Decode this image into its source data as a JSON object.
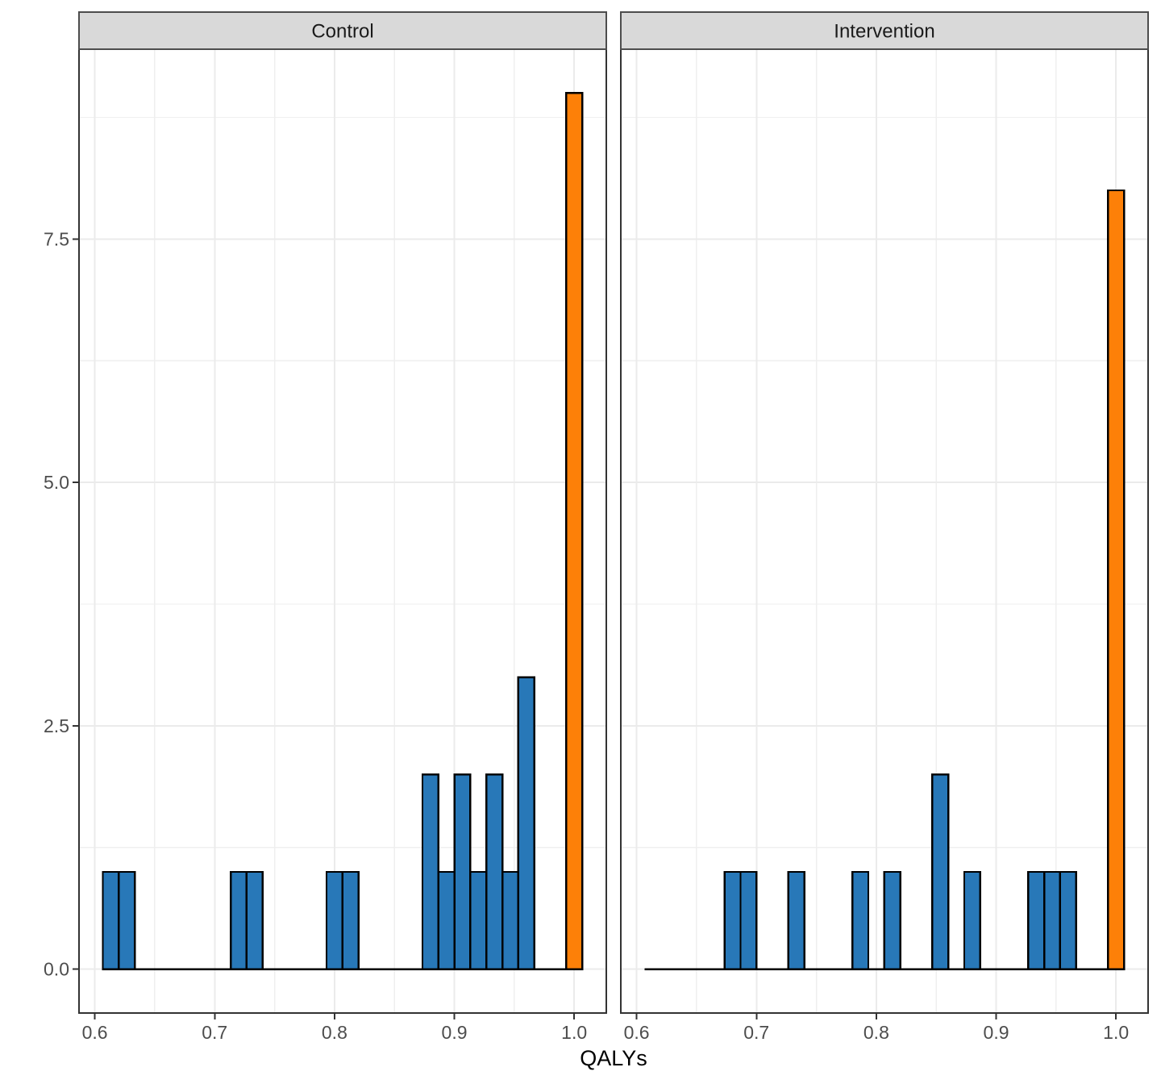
{
  "chart_data": {
    "type": "bar",
    "subtype": "faceted-histogram",
    "title": "",
    "xlabel": "QALYs",
    "ylabel": "",
    "grid": true,
    "legend": "none",
    "x_domain": [
      0.5868,
      1.0268
    ],
    "y_domain": [
      -0.45,
      9.45
    ],
    "bin_start": 0.60668,
    "binwidth": 0.013335,
    "n_bins_span": 30,
    "x_ticks": [
      {
        "value": 0.6,
        "label": "0.6"
      },
      {
        "value": 0.7,
        "label": "0.7"
      },
      {
        "value": 0.8,
        "label": "0.8"
      },
      {
        "value": 0.9,
        "label": "0.9"
      },
      {
        "value": 1.0,
        "label": "1.0"
      }
    ],
    "x_minor_ticks": [
      0.65,
      0.75,
      0.85,
      0.95
    ],
    "y_ticks": [
      {
        "value": 0.0,
        "label": "0.0"
      },
      {
        "value": 2.5,
        "label": "2.5"
      },
      {
        "value": 5.0,
        "label": "5.0"
      },
      {
        "value": 7.5,
        "label": "7.5"
      }
    ],
    "y_minor_ticks": [
      1.25,
      3.75,
      6.25,
      8.75
    ],
    "facets": [
      {
        "label": "Control",
        "bars": [
          {
            "bin": 0,
            "x0": 0.6067,
            "count": 1,
            "color": "blue"
          },
          {
            "bin": 1,
            "x0": 0.62,
            "count": 1,
            "color": "blue"
          },
          {
            "bin": 8,
            "x0": 0.7134,
            "count": 1,
            "color": "blue"
          },
          {
            "bin": 9,
            "x0": 0.7267,
            "count": 1,
            "color": "blue"
          },
          {
            "bin": 14,
            "x0": 0.7934,
            "count": 1,
            "color": "blue"
          },
          {
            "bin": 15,
            "x0": 0.8067,
            "count": 1,
            "color": "blue"
          },
          {
            "bin": 20,
            "x0": 0.8734,
            "count": 2,
            "color": "blue"
          },
          {
            "bin": 21,
            "x0": 0.8867,
            "count": 1,
            "color": "blue"
          },
          {
            "bin": 22,
            "x0": 0.9,
            "count": 2,
            "color": "blue"
          },
          {
            "bin": 23,
            "x0": 0.9134,
            "count": 1,
            "color": "blue"
          },
          {
            "bin": 24,
            "x0": 0.9267,
            "count": 2,
            "color": "blue"
          },
          {
            "bin": 25,
            "x0": 0.9401,
            "count": 1,
            "color": "blue"
          },
          {
            "bin": 26,
            "x0": 0.9534,
            "count": 3,
            "color": "blue"
          },
          {
            "bin": 29,
            "x0": 0.9934,
            "count": 9,
            "color": "orange"
          }
        ]
      },
      {
        "label": "Intervention",
        "bars": [
          {
            "bin": 5,
            "x0": 0.6734,
            "count": 1,
            "color": "blue"
          },
          {
            "bin": 6,
            "x0": 0.6867,
            "count": 1,
            "color": "blue"
          },
          {
            "bin": 9,
            "x0": 0.7267,
            "count": 1,
            "color": "blue"
          },
          {
            "bin": 13,
            "x0": 0.78,
            "count": 1,
            "color": "blue"
          },
          {
            "bin": 15,
            "x0": 0.8067,
            "count": 1,
            "color": "blue"
          },
          {
            "bin": 18,
            "x0": 0.8467,
            "count": 2,
            "color": "blue"
          },
          {
            "bin": 20,
            "x0": 0.8734,
            "count": 1,
            "color": "blue"
          },
          {
            "bin": 24,
            "x0": 0.9267,
            "count": 1,
            "color": "blue"
          },
          {
            "bin": 25,
            "x0": 0.9401,
            "count": 1,
            "color": "blue"
          },
          {
            "bin": 26,
            "x0": 0.9534,
            "count": 1,
            "color": "blue"
          },
          {
            "bin": 29,
            "x0": 0.9934,
            "count": 8,
            "color": "orange"
          }
        ]
      }
    ],
    "colors": {
      "blue": "#2878B8",
      "orange": "#FD8008",
      "bar_border": "#000000",
      "strip_fill": "#D9D9D9",
      "strip_border": "#4D4D4D",
      "strip_text": "#1A1A1A",
      "panel_border": "#333333",
      "grid_major": "#EBEBEB",
      "grid_minor": "#EFEFEF",
      "axis_text": "#4D4D4D",
      "axis_tick": "#333333",
      "axis_title": "#000000",
      "background": "#FFFFFF"
    }
  }
}
